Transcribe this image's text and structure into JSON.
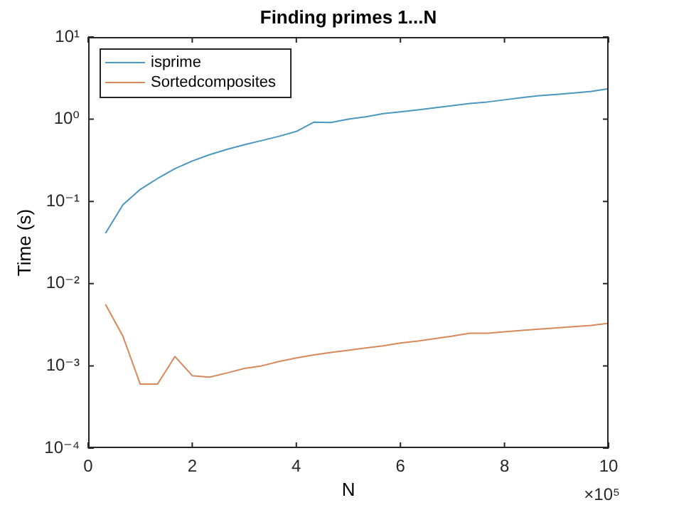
{
  "chart_data": {
    "type": "line",
    "title": "Finding primes 1...N",
    "xlabel": "N",
    "ylabel": "Time (s)",
    "annotations": [
      "×10⁵"
    ],
    "log": "y",
    "grid": false,
    "legend": "top left",
    "marker": "none",
    "line_style": "solid",
    "x": [
      0.333,
      0.667,
      1,
      1.333,
      1.667,
      2,
      2.333,
      2.667,
      3,
      3.333,
      3.667,
      4,
      4.333,
      4.667,
      5,
      5.333,
      5.667,
      6,
      6.333,
      6.667,
      7,
      7.333,
      7.667,
      8,
      8.333,
      8.667,
      9,
      9.333,
      9.667,
      10
    ],
    "xlim": [
      0,
      10
    ],
    "xticks": [
      0,
      2,
      4,
      6,
      8,
      10
    ],
    "ylim": [
      0.0001,
      10
    ],
    "yticks": [
      {
        "value": 0.0001,
        "label": "10⁻⁴"
      },
      {
        "value": 0.001,
        "label": "10⁻³"
      },
      {
        "value": 0.01,
        "label": "10⁻²"
      },
      {
        "value": 0.1,
        "label": "10⁻¹"
      },
      {
        "value": 1,
        "label": "10⁰"
      },
      {
        "value": 10,
        "label": "10¹"
      }
    ],
    "series": [
      {
        "name": "isprime",
        "color": "#4a97bf",
        "values": [
          0.041,
          0.091,
          0.14,
          0.19,
          0.25,
          0.31,
          0.37,
          0.43,
          0.49,
          0.55,
          0.62,
          0.71,
          0.92,
          0.91,
          1.0,
          1.07,
          1.17,
          1.23,
          1.3,
          1.38,
          1.46,
          1.55,
          1.62,
          1.72,
          1.83,
          1.93,
          2.0,
          2.08,
          2.18,
          2.35
        ]
      },
      {
        "name": "Sortedcomposites",
        "color": "#d9885a",
        "values": [
          0.0056,
          0.0023,
          0.0006,
          0.0006,
          0.0013,
          0.00076,
          0.00073,
          0.00082,
          0.00093,
          0.001,
          0.00113,
          0.00125,
          0.00136,
          0.00146,
          0.00155,
          0.00165,
          0.00175,
          0.0019,
          0.002,
          0.00215,
          0.0023,
          0.0025,
          0.0025,
          0.0026,
          0.0027,
          0.0028,
          0.0029,
          0.003,
          0.0031,
          0.0033
        ]
      }
    ]
  }
}
